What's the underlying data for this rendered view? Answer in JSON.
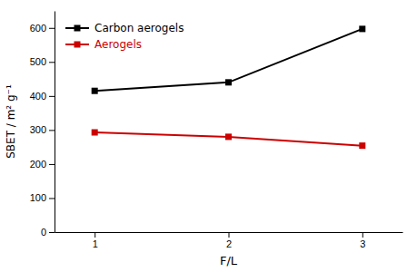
{
  "chart_data": {
    "type": "line",
    "x": [
      1,
      2,
      3
    ],
    "series": [
      {
        "name": "Carbon aerogels",
        "color": "#000000",
        "marker": "square",
        "values": [
          415,
          440,
          597
        ]
      },
      {
        "name": "Aerogels",
        "color": "#cc0000",
        "marker": "square",
        "values": [
          293,
          280,
          254
        ]
      }
    ],
    "xlabel": "F/L",
    "ylabel": "SBET / m² g⁻¹",
    "xlim": [
      0.7,
      3.3
    ],
    "xticks": [
      1,
      2,
      3
    ],
    "ylim": [
      0,
      650
    ],
    "yticks": [
      0,
      100,
      200,
      300,
      400,
      500,
      600
    ],
    "legend": "upper left"
  }
}
